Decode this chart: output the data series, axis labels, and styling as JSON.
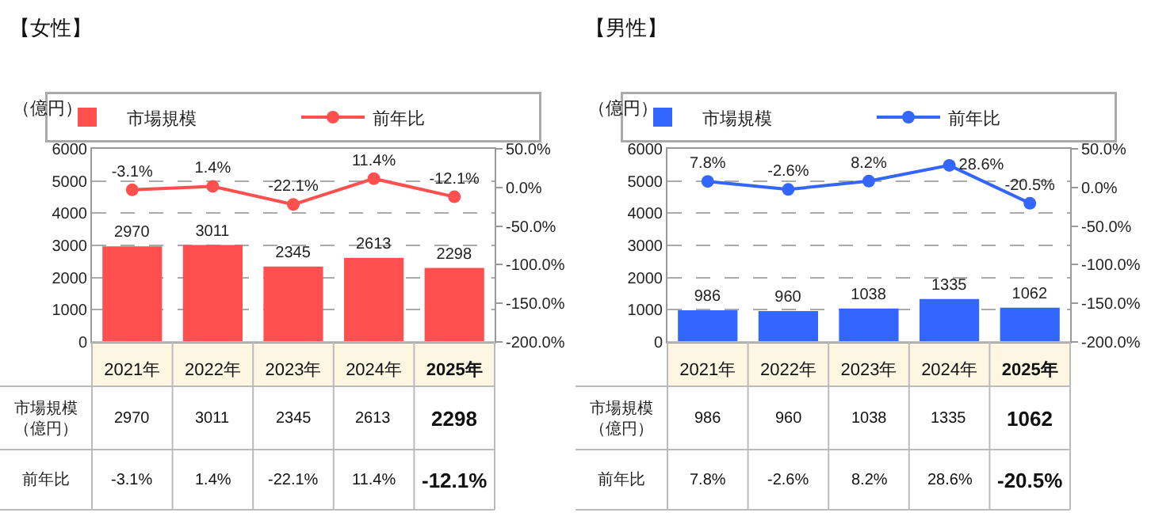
{
  "chart_data": [
    {
      "type": "bar",
      "title": "【女性】",
      "ylabel": "（億円）",
      "categories": [
        "2021年",
        "2022年",
        "2023年",
        "2024年",
        "2025年"
      ],
      "series": [
        {
          "name": "市場規模",
          "type": "bar",
          "color": "#ff4f4f",
          "values": [
            2970,
            3011,
            2345,
            2613,
            2298
          ],
          "value_labels": [
            "2970",
            "3011",
            "2345",
            "2613",
            "2298"
          ]
        },
        {
          "name": "前年比",
          "type": "line",
          "axis": "y2",
          "color": "#ff4f4f",
          "values": [
            -3.1,
            1.4,
            -22.1,
            11.4,
            -12.1
          ],
          "value_labels": [
            "-3.1%",
            "1.4%",
            "-22.1%",
            "11.4%",
            "-12.1%"
          ]
        }
      ],
      "ylim": [
        0,
        6000
      ],
      "yticks": [
        0,
        1000,
        2000,
        3000,
        4000,
        5000,
        6000
      ],
      "y2lim": [
        -200,
        50
      ],
      "y2ticks": [
        {
          "value": -200,
          "label": "-200.0%"
        },
        {
          "value": -150,
          "label": "-150.0%"
        },
        {
          "value": -100,
          "label": "-100.0%"
        },
        {
          "value": -50,
          "label": "-50.0%"
        },
        {
          "value": 0,
          "label": "0.0%"
        },
        {
          "value": 50,
          "label": "50.0%"
        }
      ],
      "grid": "y",
      "legend": "top",
      "marker": "circle",
      "line_style": "solid"
    },
    {
      "type": "bar",
      "title": "【男性】",
      "ylabel": "（億円）",
      "categories": [
        "2021年",
        "2022年",
        "2023年",
        "2024年",
        "2025年"
      ],
      "series": [
        {
          "name": "市場規模",
          "type": "bar",
          "color": "#3366ff",
          "values": [
            986,
            960,
            1038,
            1335,
            1062
          ],
          "value_labels": [
            "986",
            "960",
            "1038",
            "1335",
            "1062"
          ]
        },
        {
          "name": "前年比",
          "type": "line",
          "axis": "y2",
          "color": "#3366ff",
          "values": [
            7.8,
            -2.6,
            8.2,
            28.6,
            -20.5
          ],
          "value_labels": [
            "7.8%",
            "-2.6%",
            "8.2%",
            "28.6%",
            "-20.5%"
          ]
        }
      ],
      "ylim": [
        0,
        6000
      ],
      "yticks": [
        0,
        1000,
        2000,
        3000,
        4000,
        5000,
        6000
      ],
      "y2lim": [
        -200,
        50
      ],
      "y2ticks": [
        {
          "value": -200,
          "label": "-200.0%"
        },
        {
          "value": -150,
          "label": "-150.0%"
        },
        {
          "value": -100,
          "label": "-100.0%"
        },
        {
          "value": -50,
          "label": "-50.0%"
        },
        {
          "value": 0,
          "label": "0.0%"
        },
        {
          "value": 50,
          "label": "50.0%"
        }
      ],
      "grid": "y",
      "legend": "top",
      "marker": "circle",
      "line_style": "solid"
    }
  ]
}
